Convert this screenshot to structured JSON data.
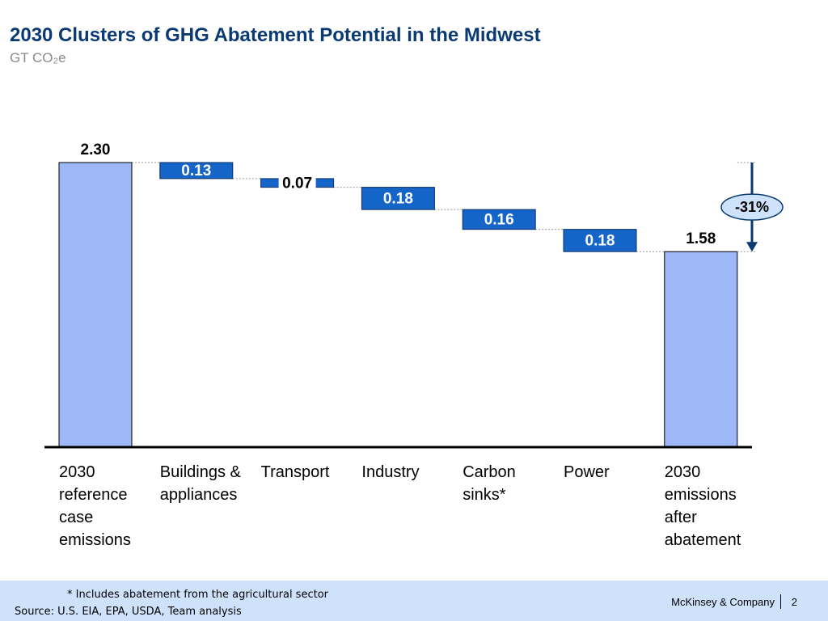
{
  "chart_data": {
    "type": "waterfall",
    "title": "2030 Clusters of GHG Abatement Potential in the Midwest",
    "subtitle": "GT CO₂e",
    "categories": [
      "2030 reference case emissions",
      "Buildings & appliances",
      "Transport",
      "Industry",
      "Carbon sinks*",
      "Power",
      "2030 emissions after abatement"
    ],
    "values": [
      2.3,
      0.13,
      0.07,
      0.18,
      0.16,
      0.18,
      1.58
    ],
    "value_labels": [
      "2.30",
      "0.13",
      "0.07",
      "0.18",
      "0.16",
      "0.18",
      "1.58"
    ],
    "measures": [
      "total",
      "decrease",
      "decrease",
      "decrease",
      "decrease",
      "decrease",
      "total"
    ],
    "total_color": "#9db7f7",
    "decrease_color": "#1565c8",
    "annotation": "-31%"
  },
  "footer": {
    "footnote": "* Includes abatement from the agricultural sector",
    "source": "Source: U.S. EIA, EPA, USDA, Team analysis",
    "company": "McKinsey & Company",
    "page": "2"
  }
}
